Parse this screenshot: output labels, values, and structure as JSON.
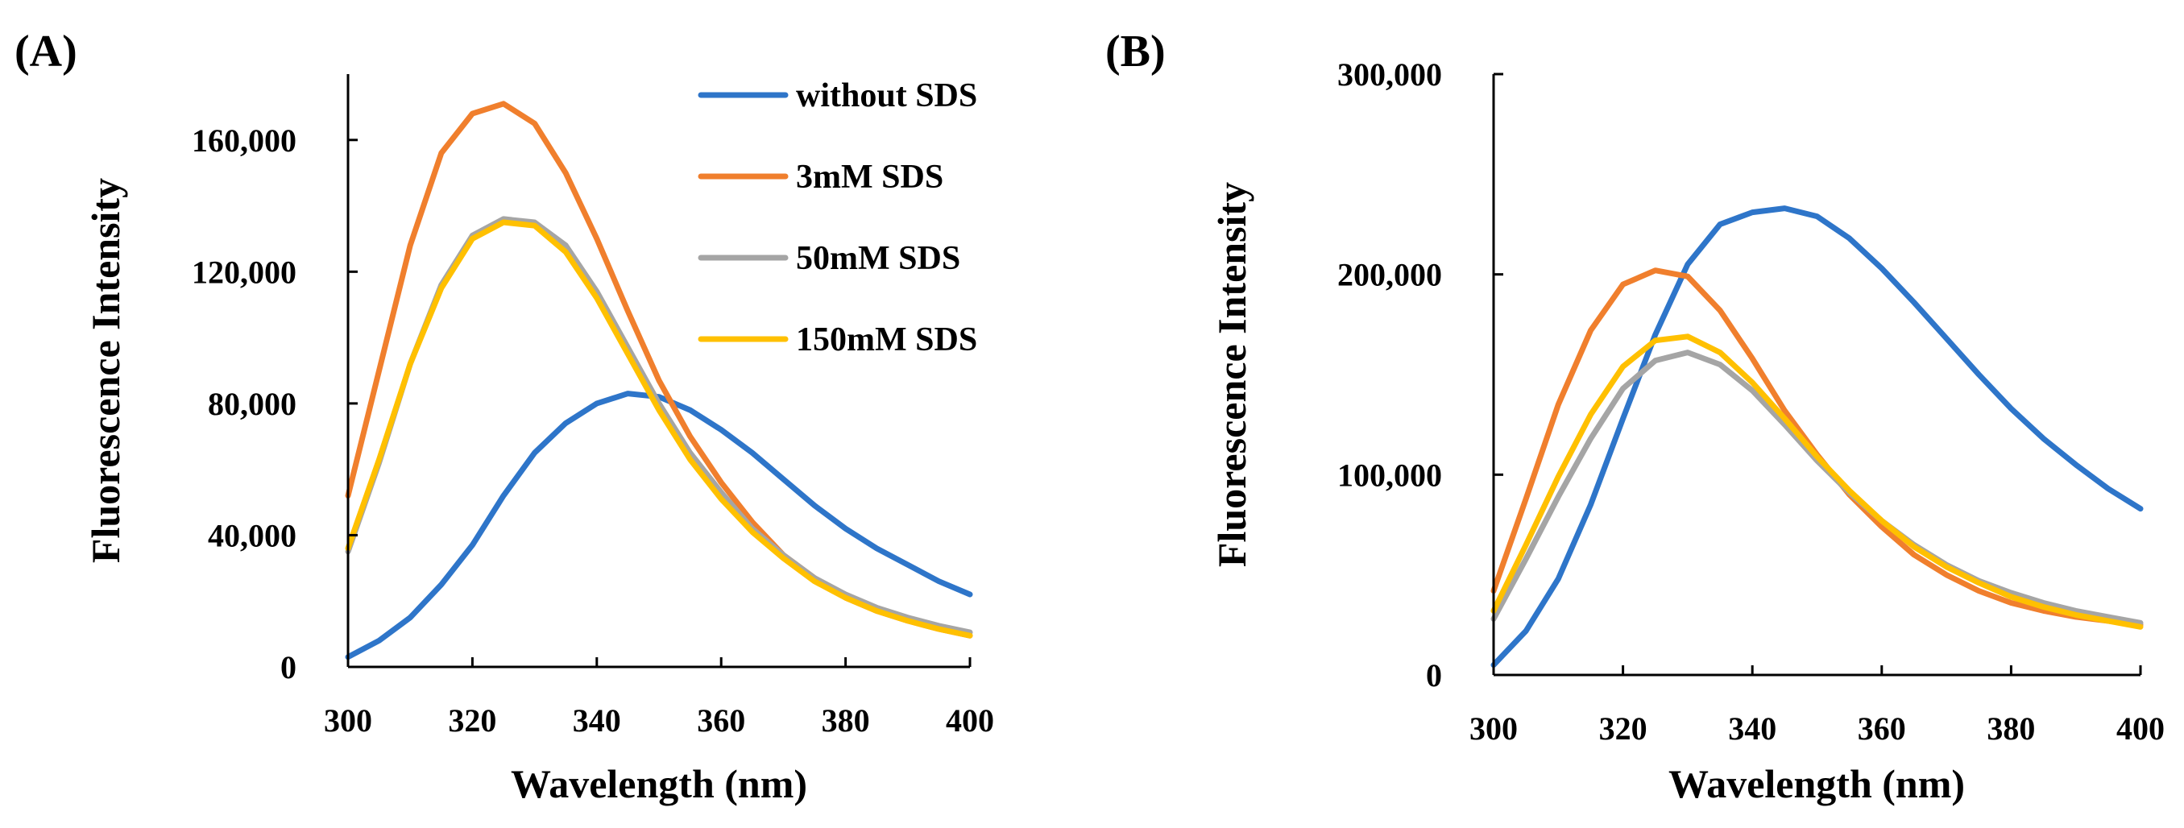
{
  "figure_labels": [
    "(A)",
    "(B)"
  ],
  "legend": [
    {
      "name": "without SDS",
      "color": "#2E75C9"
    },
    {
      "name": "3mM SDS",
      "color": "#F07F2D"
    },
    {
      "name": "50mM SDS",
      "color": "#A5A5A5"
    },
    {
      "name": "150mM SDS",
      "color": "#FFC000"
    }
  ],
  "chart_data": [
    {
      "type": "line",
      "panel": "(A)",
      "title": "",
      "xlabel": "Wavelength (nm)",
      "ylabel": "Fluorescence Intensity",
      "xlim": [
        300,
        400
      ],
      "ylim": [
        0,
        180000
      ],
      "xticks": [
        300,
        320,
        340,
        360,
        380,
        400
      ],
      "yticks": [
        0,
        40000,
        80000,
        120000,
        160000
      ],
      "xtick_labels": [
        "300",
        "320",
        "340",
        "360",
        "380",
        "400"
      ],
      "ytick_labels": [
        "0",
        "40,000",
        "80,000",
        "120,000",
        "160,000"
      ],
      "legend_position": "top-right",
      "x": [
        300,
        305,
        310,
        315,
        320,
        325,
        330,
        335,
        340,
        345,
        350,
        355,
        360,
        365,
        370,
        375,
        380,
        385,
        390,
        395,
        400
      ],
      "series": [
        {
          "name": "without SDS",
          "color": "#2E75C9",
          "values": [
            3000,
            8000,
            15000,
            25000,
            37000,
            52000,
            65000,
            74000,
            80000,
            83000,
            82000,
            78000,
            72000,
            65000,
            57000,
            49000,
            42000,
            36000,
            31000,
            26000,
            22000
          ]
        },
        {
          "name": "3mM SDS",
          "color": "#F07F2D",
          "values": [
            52000,
            90000,
            128000,
            156000,
            168000,
            171000,
            165000,
            150000,
            130000,
            108000,
            87000,
            70000,
            56000,
            44000,
            34000,
            27000,
            21000,
            17000,
            14000,
            11500,
            9500
          ]
        },
        {
          "name": "50mM SDS",
          "color": "#A5A5A5",
          "values": [
            35000,
            62000,
            92000,
            116000,
            131000,
            136000,
            135000,
            128000,
            114000,
            97000,
            80000,
            65000,
            53000,
            42000,
            34000,
            27000,
            22000,
            18000,
            15000,
            12500,
            10500
          ]
        },
        {
          "name": "150mM SDS",
          "color": "#FFC000",
          "values": [
            36000,
            63000,
            92000,
            115000,
            130000,
            135000,
            134000,
            126000,
            112000,
            95000,
            78000,
            63000,
            51000,
            41000,
            33000,
            26000,
            21000,
            17000,
            14000,
            11500,
            9500
          ]
        }
      ]
    },
    {
      "type": "line",
      "panel": "(B)",
      "title": "",
      "xlabel": "Wavelength (nm)",
      "ylabel": "Fluorescence Intensity",
      "xlim": [
        300,
        400
      ],
      "ylim": [
        0,
        300000
      ],
      "xticks": [
        300,
        320,
        340,
        360,
        380,
        400
      ],
      "yticks": [
        0,
        100000,
        200000,
        300000
      ],
      "xtick_labels": [
        "300",
        "320",
        "340",
        "360",
        "380",
        "400"
      ],
      "ytick_labels": [
        "0",
        "100,000",
        "200,000",
        "300,000"
      ],
      "x": [
        300,
        305,
        310,
        315,
        320,
        325,
        330,
        335,
        340,
        345,
        350,
        355,
        360,
        365,
        370,
        375,
        380,
        385,
        390,
        395,
        400
      ],
      "series": [
        {
          "name": "without SDS",
          "color": "#2E75C9",
          "values": [
            5000,
            22000,
            48000,
            85000,
            128000,
            170000,
            205000,
            225000,
            231000,
            233000,
            229000,
            218000,
            203000,
            186000,
            168000,
            150000,
            133000,
            118000,
            105000,
            93000,
            83000
          ]
        },
        {
          "name": "3mM SDS",
          "color": "#F07F2D",
          "values": [
            42000,
            88000,
            135000,
            172000,
            195000,
            202000,
            199000,
            182000,
            158000,
            132000,
            110000,
            90000,
            74000,
            60000,
            50000,
            42000,
            36000,
            32000,
            29000,
            27000,
            25000
          ]
        },
        {
          "name": "50mM SDS",
          "color": "#A5A5A5",
          "values": [
            28000,
            58000,
            89000,
            118000,
            143000,
            157000,
            161000,
            155000,
            142000,
            125000,
            107000,
            91000,
            77000,
            65000,
            55000,
            47000,
            41000,
            36000,
            32000,
            29000,
            26000
          ]
        },
        {
          "name": "150mM SDS",
          "color": "#FFC000",
          "values": [
            32000,
            65000,
            99000,
            130000,
            154000,
            167000,
            169000,
            161000,
            146000,
            128000,
            109000,
            92000,
            77000,
            64000,
            54000,
            46000,
            39000,
            34000,
            30000,
            27000,
            24000
          ]
        }
      ]
    }
  ]
}
